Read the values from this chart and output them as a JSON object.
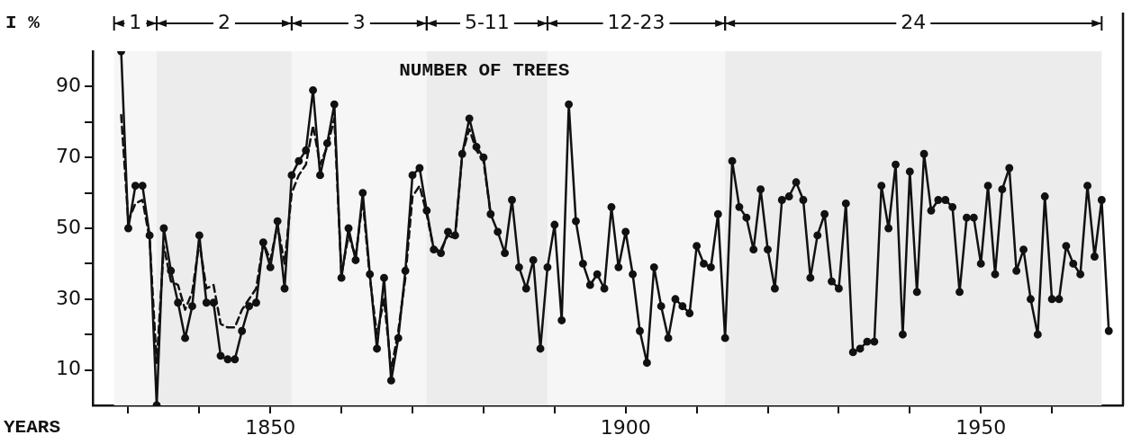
{
  "chart_data": {
    "type": "line",
    "title": "NUMBER OF TREES",
    "xlabel": "YEARS",
    "ylabel": "I %",
    "x": [
      1829,
      1830,
      1831,
      1832,
      1833,
      1834,
      1835,
      1836,
      1837,
      1838,
      1839,
      1840,
      1841,
      1842,
      1843,
      1844,
      1845,
      1846,
      1847,
      1848,
      1849,
      1850,
      1851,
      1852,
      1853,
      1854,
      1855,
      1856,
      1857,
      1858,
      1859,
      1860,
      1861,
      1862,
      1863,
      1864,
      1865,
      1866,
      1867,
      1868,
      1869,
      1870,
      1871,
      1872,
      1873,
      1874,
      1875,
      1876,
      1877,
      1878,
      1879,
      1880,
      1881,
      1882,
      1883,
      1884,
      1885,
      1886,
      1887,
      1888,
      1889,
      1890,
      1891,
      1892,
      1893,
      1894,
      1895,
      1896,
      1897,
      1898,
      1899,
      1900,
      1901,
      1902,
      1903,
      1904,
      1905,
      1906,
      1907,
      1908,
      1909,
      1910,
      1911,
      1912,
      1913,
      1914,
      1915,
      1916,
      1917,
      1918,
      1919,
      1920,
      1921,
      1922,
      1923,
      1924,
      1925,
      1926,
      1927,
      1928,
      1929,
      1930,
      1931,
      1932,
      1933,
      1934,
      1935,
      1936,
      1937,
      1938,
      1939,
      1940,
      1941,
      1942,
      1943,
      1944,
      1945,
      1946,
      1947,
      1948,
      1949,
      1950,
      1951,
      1952,
      1953,
      1954,
      1955,
      1956,
      1957,
      1958,
      1959,
      1960,
      1961,
      1962,
      1963,
      1964,
      1965,
      1966,
      1967,
      1968
    ],
    "series": [
      {
        "color": "#111111",
        "marker": "circle",
        "line_style": "solid",
        "values": [
          100,
          50,
          62,
          62,
          48,
          0,
          50,
          38,
          29,
          19,
          28,
          48,
          29,
          29,
          14,
          13,
          13,
          21,
          28,
          29,
          46,
          39,
          52,
          33,
          65,
          69,
          72,
          89,
          65,
          74,
          85,
          36,
          50,
          41,
          60,
          37,
          16,
          36,
          7,
          19,
          38,
          65,
          67,
          55,
          44,
          43,
          49,
          48,
          71,
          81,
          73,
          70,
          54,
          49,
          43,
          58,
          39,
          33,
          41,
          16,
          39,
          51,
          24,
          85,
          52,
          40,
          34,
          37,
          33,
          56,
          39,
          49,
          37,
          21,
          12,
          39,
          28,
          19,
          30,
          28,
          26,
          45,
          40,
          39,
          54,
          19,
          69,
          56,
          53,
          44,
          61,
          44,
          33,
          58,
          59,
          63,
          58,
          36,
          48,
          54,
          35,
          33,
          57,
          15,
          16,
          18,
          18,
          62,
          50,
          68,
          20,
          66,
          32,
          71,
          55,
          58,
          58,
          56,
          32,
          53,
          53,
          40,
          62,
          37,
          61,
          67,
          38,
          44,
          30,
          20,
          59,
          30,
          30,
          45,
          40,
          37,
          62,
          42,
          58,
          21
        ]
      },
      {
        "color": "#111111",
        "marker": "none",
        "line_style": "dashed",
        "x": [
          1829,
          1830,
          1831,
          1832,
          1833,
          1834,
          1835,
          1836,
          1837,
          1838,
          1839,
          1840,
          1841,
          1842,
          1843,
          1844,
          1845,
          1846,
          1847,
          1848,
          1849,
          1850,
          1851,
          1852,
          1853,
          1854,
          1855,
          1856,
          1857,
          1858,
          1859,
          1860,
          1861,
          1862,
          1863,
          1864,
          1865,
          1866,
          1867,
          1868,
          1869,
          1870,
          1871,
          1872,
          1873,
          1874,
          1875,
          1876,
          1877,
          1878,
          1879,
          1880,
          1881
        ],
        "values": [
          82,
          52,
          57,
          58,
          47,
          12,
          45,
          35,
          34,
          27,
          32,
          46,
          33,
          34,
          23,
          22,
          22,
          27,
          30,
          33,
          46,
          41,
          51,
          40,
          60,
          65,
          68,
          79,
          68,
          73,
          81,
          37,
          48,
          42,
          58,
          36,
          20,
          30,
          10,
          21,
          36,
          59,
          62,
          54,
          44,
          44,
          48,
          47,
          71,
          78,
          72,
          69,
          54
        ]
      }
    ],
    "xlim": [
      1825,
      1970
    ],
    "xticks": [
      {
        "value": 1830,
        "label": null
      },
      {
        "value": 1840,
        "label": null
      },
      1850,
      {
        "value": 1860,
        "label": null
      },
      {
        "value": 1870,
        "label": null
      },
      {
        "value": 1880,
        "label": null
      },
      {
        "value": 1890,
        "label": null
      },
      1900,
      {
        "value": 1910,
        "label": null
      },
      {
        "value": 1920,
        "label": null
      },
      {
        "value": 1930,
        "label": null
      },
      {
        "value": 1940,
        "label": null
      },
      1950,
      {
        "value": 1960,
        "label": null
      }
    ],
    "ylim": [
      0,
      100
    ],
    "yticks": [
      10,
      {
        "value": 20,
        "label": null
      },
      30,
      {
        "value": 40,
        "label": null
      },
      50,
      {
        "value": 60,
        "label": null
      },
      70,
      {
        "value": 80,
        "label": null
      },
      90
    ],
    "bands": [
      {
        "axis": "x",
        "from": 1828,
        "to": 1834,
        "label": "1"
      },
      {
        "axis": "x",
        "from": 1834,
        "to": 1853,
        "label": "2"
      },
      {
        "axis": "x",
        "from": 1853,
        "to": 1872,
        "label": "3"
      },
      {
        "axis": "x",
        "from": 1872,
        "to": 1889,
        "label": "5-11"
      },
      {
        "axis": "x",
        "from": 1889,
        "to": 1914,
        "label": "12-23"
      },
      {
        "axis": "x",
        "from": 1914,
        "to": 1967,
        "label": "24"
      }
    ]
  }
}
